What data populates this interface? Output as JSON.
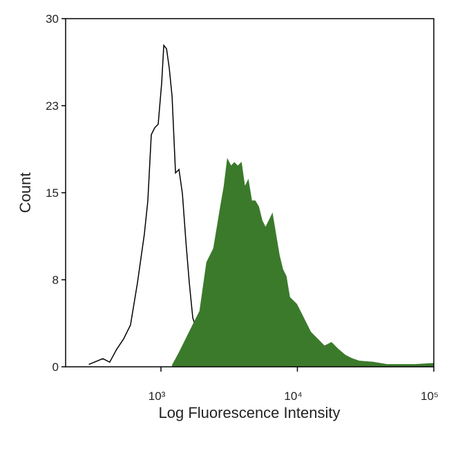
{
  "chart_data": {
    "type": "histogram-overlay",
    "x_label": "Log Fluorescence Intensity",
    "y_label": "Count",
    "xscale": "log",
    "xlim": [
      200,
      100000
    ],
    "ylim": [
      0,
      30
    ],
    "xticks": [
      {
        "value": 1000,
        "label": "10³"
      },
      {
        "value": 10000,
        "label": "10⁴"
      },
      {
        "value": 100000,
        "label": "10⁵"
      }
    ],
    "yticks": [
      0,
      {
        "value": 7.5,
        "label": "8"
      },
      15,
      {
        "value": 22.5,
        "label": "23"
      },
      30
    ],
    "series": [
      {
        "color": "#000000",
        "style": "outline",
        "x": [
          296,
          375,
          421,
          473,
          532,
          598,
          672,
          755,
          801,
          849,
          900,
          954,
          1012,
          1048,
          1098,
          1151,
          1206,
          1279,
          1355,
          1437,
          1523,
          1615,
          1712,
          1924,
          2162,
          2430,
          2732,
          3259,
          3885,
          4362,
          9885,
          11117
        ],
        "values": [
          0.2,
          0.7,
          0.4,
          1.5,
          2.4,
          3.6,
          7.2,
          11.4,
          14.3,
          20.0,
          20.6,
          20.9,
          24.5,
          27.7,
          27.4,
          25.7,
          23.3,
          16.7,
          17.0,
          14.9,
          10.8,
          7.2,
          4.2,
          2.4,
          1.2,
          0.5,
          0.2,
          0.2,
          0.3,
          0.1,
          0.2,
          0.1
        ]
      },
      {
        "color": "#3b7a2b",
        "style": "filled",
        "x": [
          1206,
          1355,
          1523,
          1712,
          1924,
          2162,
          2430,
          2732,
          2896,
          3070,
          3259,
          3452,
          3660,
          3885,
          4115,
          4362,
          4625,
          4901,
          5197,
          5508,
          5838,
          6188,
          6559,
          6953,
          7371,
          7811,
          8279,
          8776,
          9885,
          11117,
          12500,
          14050,
          15800,
          17770,
          19980,
          22460,
          25240,
          28390,
          35880,
          45350,
          72300,
          100000
        ],
        "values": [
          0.1,
          1.2,
          2.4,
          3.6,
          4.8,
          9.0,
          10.2,
          13.8,
          15.5,
          17.9,
          17.3,
          17.6,
          17.3,
          17.6,
          15.5,
          16.1,
          14.3,
          14.3,
          13.8,
          12.6,
          12.0,
          12.6,
          13.2,
          11.4,
          9.6,
          8.4,
          7.8,
          6.0,
          5.4,
          4.2,
          3.0,
          2.4,
          1.8,
          2.1,
          1.5,
          1.0,
          0.7,
          0.5,
          0.4,
          0.2,
          0.2,
          0.3
        ]
      }
    ]
  }
}
